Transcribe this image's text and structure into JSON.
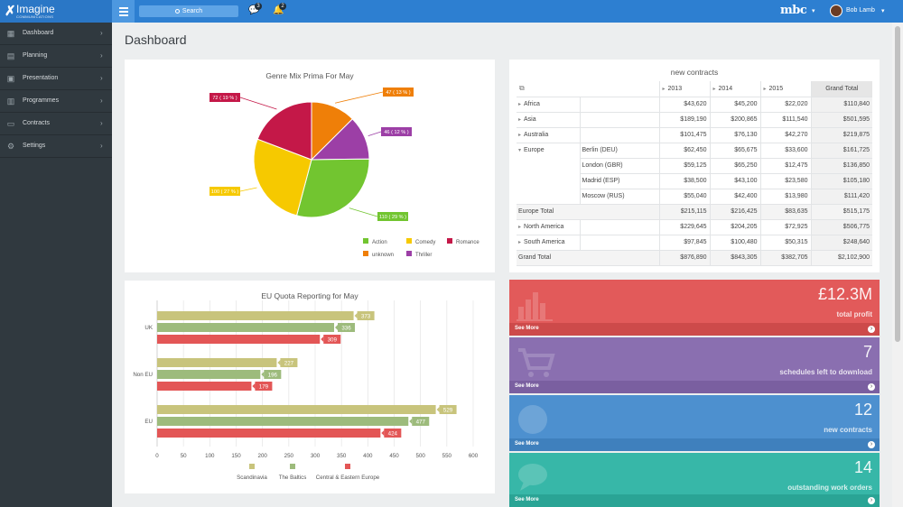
{
  "topbar": {
    "logo_name": "Imagine",
    "logo_sub": "COMMUNICATIONS",
    "search_label": "Search",
    "chat_count": "3",
    "bell_count": "2",
    "brand": "mbc",
    "user_name": "Bob Lamb"
  },
  "sidebar": {
    "items": [
      {
        "label": "Dashboard",
        "icon": "grid-icon"
      },
      {
        "label": "Planning",
        "icon": "calendar-icon"
      },
      {
        "label": "Presentation",
        "icon": "presentation-icon"
      },
      {
        "label": "Programmes",
        "icon": "film-icon"
      },
      {
        "label": "Contracts",
        "icon": "money-icon"
      },
      {
        "label": "Settings",
        "icon": "gear-icon"
      }
    ]
  },
  "page": {
    "title": "Dashboard"
  },
  "pie": {
    "chart_data": {
      "type": "pie",
      "title": "Genre Mix Prima For May",
      "slices": [
        {
          "name": "Action",
          "value": 110,
          "label": "110 ( 29 % )",
          "color": "#72c530"
        },
        {
          "name": "Comedy",
          "value": 100,
          "label": "100 ( 27 % )",
          "color": "#f6c900"
        },
        {
          "name": "Romance",
          "value": 72,
          "label": "72 ( 19 % )",
          "color": "#c41848"
        },
        {
          "name": "unknown",
          "value": 47,
          "label": "47 ( 13 % )",
          "color": "#ef7f08"
        },
        {
          "name": "Thriller",
          "value": 46,
          "label": "46 ( 12 % )",
          "color": "#9c3fa6"
        }
      ],
      "legend": "bottom-right"
    }
  },
  "bar": {
    "chart_data": {
      "type": "bar",
      "orientation": "horizontal",
      "title": "EU Quota Reporting for May",
      "categories": [
        "UK",
        "Non EU",
        "EU"
      ],
      "series": [
        {
          "name": "Scandinavia",
          "values": [
            373,
            227,
            529
          ],
          "color": "#c8c47c"
        },
        {
          "name": "The Baltics",
          "values": [
            336,
            196,
            477
          ],
          "color": "#9dbb7c"
        },
        {
          "name": "Central & Eastern Europe",
          "values": [
            309,
            179,
            424
          ],
          "color": "#e35656"
        }
      ],
      "xlim": [
        0,
        600
      ],
      "xticks": [
        "0",
        "50",
        "100",
        "150",
        "200",
        "250",
        "300",
        "350",
        "400",
        "450",
        "500",
        "550",
        "600"
      ],
      "legend": "bottom",
      "grid": true
    }
  },
  "pivot": {
    "title": "new contracts",
    "years": [
      "2013",
      "2014",
      "2015"
    ],
    "grand_total_header": "Grand Total",
    "rows": [
      {
        "region": "Africa",
        "city": "",
        "vals": [
          "$43,620",
          "$45,200",
          "$22,020",
          "$110,840"
        ],
        "kind": "collapsed"
      },
      {
        "region": "Asia",
        "city": "",
        "vals": [
          "$189,190",
          "$200,865",
          "$111,540",
          "$501,595"
        ],
        "kind": "collapsed"
      },
      {
        "region": "Australia",
        "city": "",
        "vals": [
          "$101,475",
          "$76,130",
          "$42,270",
          "$219,875"
        ],
        "kind": "collapsed"
      },
      {
        "region": "Europe",
        "city": "Berlin (DEU)",
        "vals": [
          "$62,450",
          "$65,675",
          "$33,600",
          "$161,725"
        ],
        "kind": "expanded"
      },
      {
        "region": "",
        "city": "London (GBR)",
        "vals": [
          "$59,125",
          "$65,250",
          "$12,475",
          "$136,850"
        ],
        "kind": "child"
      },
      {
        "region": "",
        "city": "Madrid (ESP)",
        "vals": [
          "$38,500",
          "$43,100",
          "$23,580",
          "$105,180"
        ],
        "kind": "child"
      },
      {
        "region": "",
        "city": "Moscow (RUS)",
        "vals": [
          "$55,040",
          "$42,400",
          "$13,980",
          "$111,420"
        ],
        "kind": "child"
      },
      {
        "region": "Europe Total",
        "city": "",
        "vals": [
          "$215,115",
          "$216,425",
          "$83,635",
          "$515,175"
        ],
        "kind": "total"
      },
      {
        "region": "North America",
        "city": "",
        "vals": [
          "$229,645",
          "$204,205",
          "$72,925",
          "$506,775"
        ],
        "kind": "collapsed"
      },
      {
        "region": "South America",
        "city": "",
        "vals": [
          "$97,845",
          "$100,480",
          "$50,315",
          "$248,640"
        ],
        "kind": "collapsed"
      },
      {
        "region": "Grand Total",
        "city": "",
        "vals": [
          "$876,890",
          "$843,305",
          "$382,705",
          "$2,102,900"
        ],
        "kind": "total"
      }
    ]
  },
  "tiles": [
    {
      "value": "£12.3M",
      "label": "total profit",
      "more": "See More",
      "color": "#e25a5a",
      "foot": "#cd4a4a",
      "icon": "bar-chart-icon"
    },
    {
      "value": "7",
      "label": "schedules left to download",
      "more": "See More",
      "color": "#8a6fb0",
      "foot": "#7a5fa0",
      "icon": "cart-icon"
    },
    {
      "value": "12",
      "label": "new contracts",
      "more": "See More",
      "color": "#4d90cf",
      "foot": "#3f80bd",
      "icon": "globe-icon"
    },
    {
      "value": "14",
      "label": "outstanding work orders",
      "more": "See More",
      "color": "#37b7a8",
      "foot": "#2aa495",
      "icon": "chat-icon"
    }
  ]
}
